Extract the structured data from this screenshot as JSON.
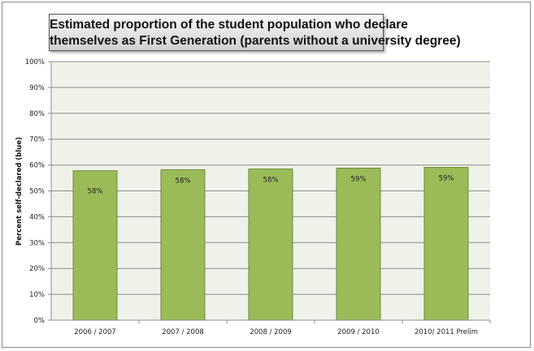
{
  "chart_data": {
    "type": "bar",
    "title": "Estimated  proportion of the student population who declare themselves as First Generation (parents without a university degree)",
    "title_lines": [
      "Estimated  proportion of the student population who declare",
      "themselves as First Generation (parents without a university degree)"
    ],
    "xlabel": "",
    "ylabel": "Percent self-declared (blue)",
    "categories": [
      "2006 / 2007",
      "2007 / 2008",
      "2008 / 2009",
      "2009 / 2010",
      "2010/ 2011 Prelim"
    ],
    "values": [
      57.8,
      58.2,
      58.5,
      58.8,
      59.1
    ],
    "data_labels": [
      "58%",
      "58%",
      "58%",
      "59%",
      "59%"
    ],
    "ylim": [
      0,
      100
    ],
    "yticks": [
      "0%",
      "10%",
      "20%",
      "30%",
      "40%",
      "50%",
      "60%",
      "70%",
      "80%",
      "90%",
      "100%"
    ],
    "grid": true,
    "legend": "none",
    "colors": {
      "bar": "#9bbb59",
      "bar_border": "#71893f",
      "plot_bg": "#eff2e8",
      "grid": "#8c8c8c"
    }
  }
}
